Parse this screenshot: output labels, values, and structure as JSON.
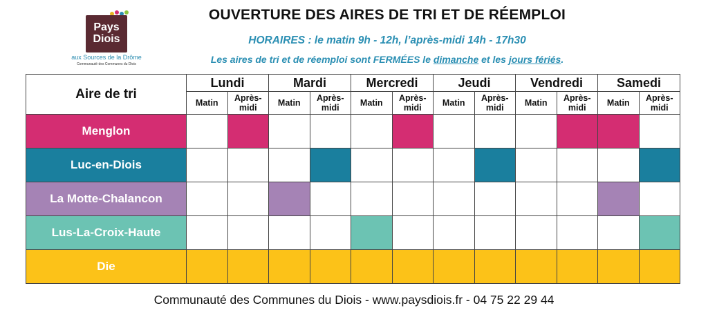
{
  "logo": {
    "line1": "Pays",
    "line2": "Diois",
    "sub": "aux Sources de la Drôme",
    "sub2": "Communauté des Communes du Diois"
  },
  "title": "OUVERTURE DES AIRES DE TRI ET DE RÉEMPLOI",
  "hours": "HORAIRES : le matin 9h - 12h, l’après-midi 14h - 17h30",
  "closed": {
    "prefix": "Les aires de tri et de réemploi sont FERMÉES le ",
    "sunday": "dimanche",
    "middle": " et les ",
    "holidays": "jours fériés",
    "suffix": "."
  },
  "table": {
    "corner_label": "Aire de tri",
    "days": [
      "Lundi",
      "Mardi",
      "Mercredi",
      "Jeudi",
      "Vendredi",
      "Samedi"
    ],
    "morning_label": "Matin",
    "afternoon_label": "Après-midi",
    "sites": [
      {
        "name": "Menglon",
        "color": "#d42d72",
        "slots": [
          false,
          true,
          false,
          false,
          false,
          true,
          false,
          false,
          false,
          true,
          true,
          false
        ]
      },
      {
        "name": "Luc-en-Diois",
        "color": "#1a7f9e",
        "slots": [
          false,
          false,
          false,
          true,
          false,
          false,
          false,
          true,
          false,
          false,
          false,
          true
        ]
      },
      {
        "name": "La Motte-Chalancon",
        "color": "#a583b5",
        "slots": [
          false,
          false,
          true,
          false,
          false,
          false,
          false,
          false,
          false,
          false,
          true,
          false
        ]
      },
      {
        "name": "Lus-La-Croix-Haute",
        "color": "#6cc3b3",
        "slots": [
          false,
          false,
          false,
          false,
          true,
          false,
          false,
          false,
          false,
          false,
          false,
          true
        ]
      },
      {
        "name": "Die",
        "color": "#fcc218",
        "slots": [
          true,
          true,
          true,
          true,
          true,
          true,
          true,
          true,
          true,
          true,
          true,
          true
        ]
      }
    ]
  },
  "footer": "Communauté des Communes du Diois - www.paysdiois.fr - 04 75 22 29 44"
}
